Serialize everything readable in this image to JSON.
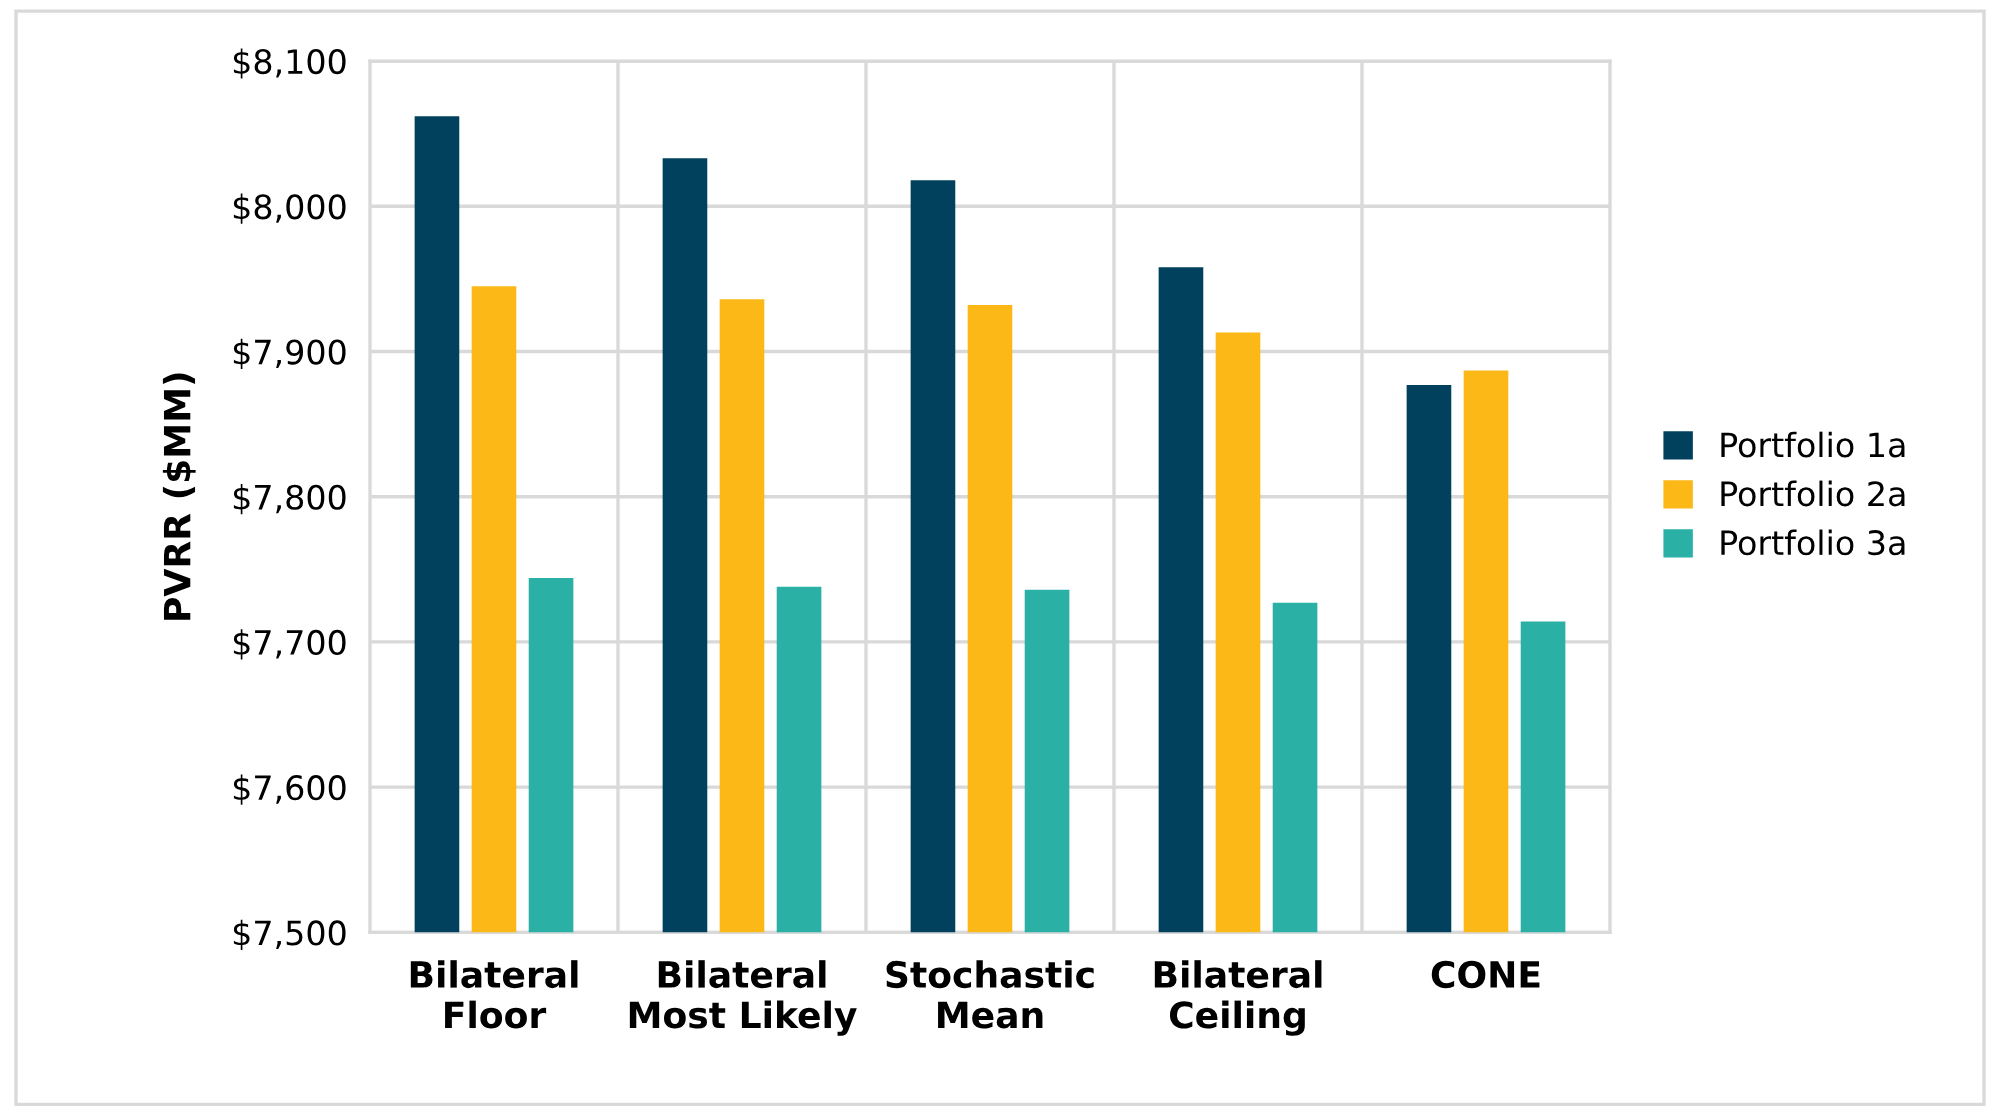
{
  "chart_data": {
    "type": "bar",
    "ylabel": "PVRR ($MM)",
    "categories": [
      "Bilateral\nFloor",
      "Bilateral\nMost Likely",
      "Stochastic\nMean",
      "Bilateral\nCeiling",
      "CONE"
    ],
    "series": [
      {
        "name": "Portfolio 1a",
        "color": "#01415e",
        "values": [
          8062,
          8033,
          8018,
          7958,
          7877
        ]
      },
      {
        "name": "Portfolio 2a",
        "color": "#fbb816",
        "values": [
          7945,
          7936,
          7932,
          7913,
          7887
        ]
      },
      {
        "name": "Portfolio 3a",
        "color": "#2bb0a6",
        "values": [
          7744,
          7738,
          7736,
          7727,
          7714
        ]
      }
    ],
    "ylim": [
      7500,
      8100
    ],
    "yticks": [
      {
        "value": 7500,
        "label": "$7,500"
      },
      {
        "value": 7600,
        "label": "$7,600"
      },
      {
        "value": 7700,
        "label": "$7,700"
      },
      {
        "value": 7800,
        "label": "$7,800"
      },
      {
        "value": 7900,
        "label": "$7,900"
      },
      {
        "value": 8000,
        "label": "$8,000"
      },
      {
        "value": 8100,
        "label": "$8,100"
      }
    ],
    "grid": true,
    "legend": "right"
  }
}
